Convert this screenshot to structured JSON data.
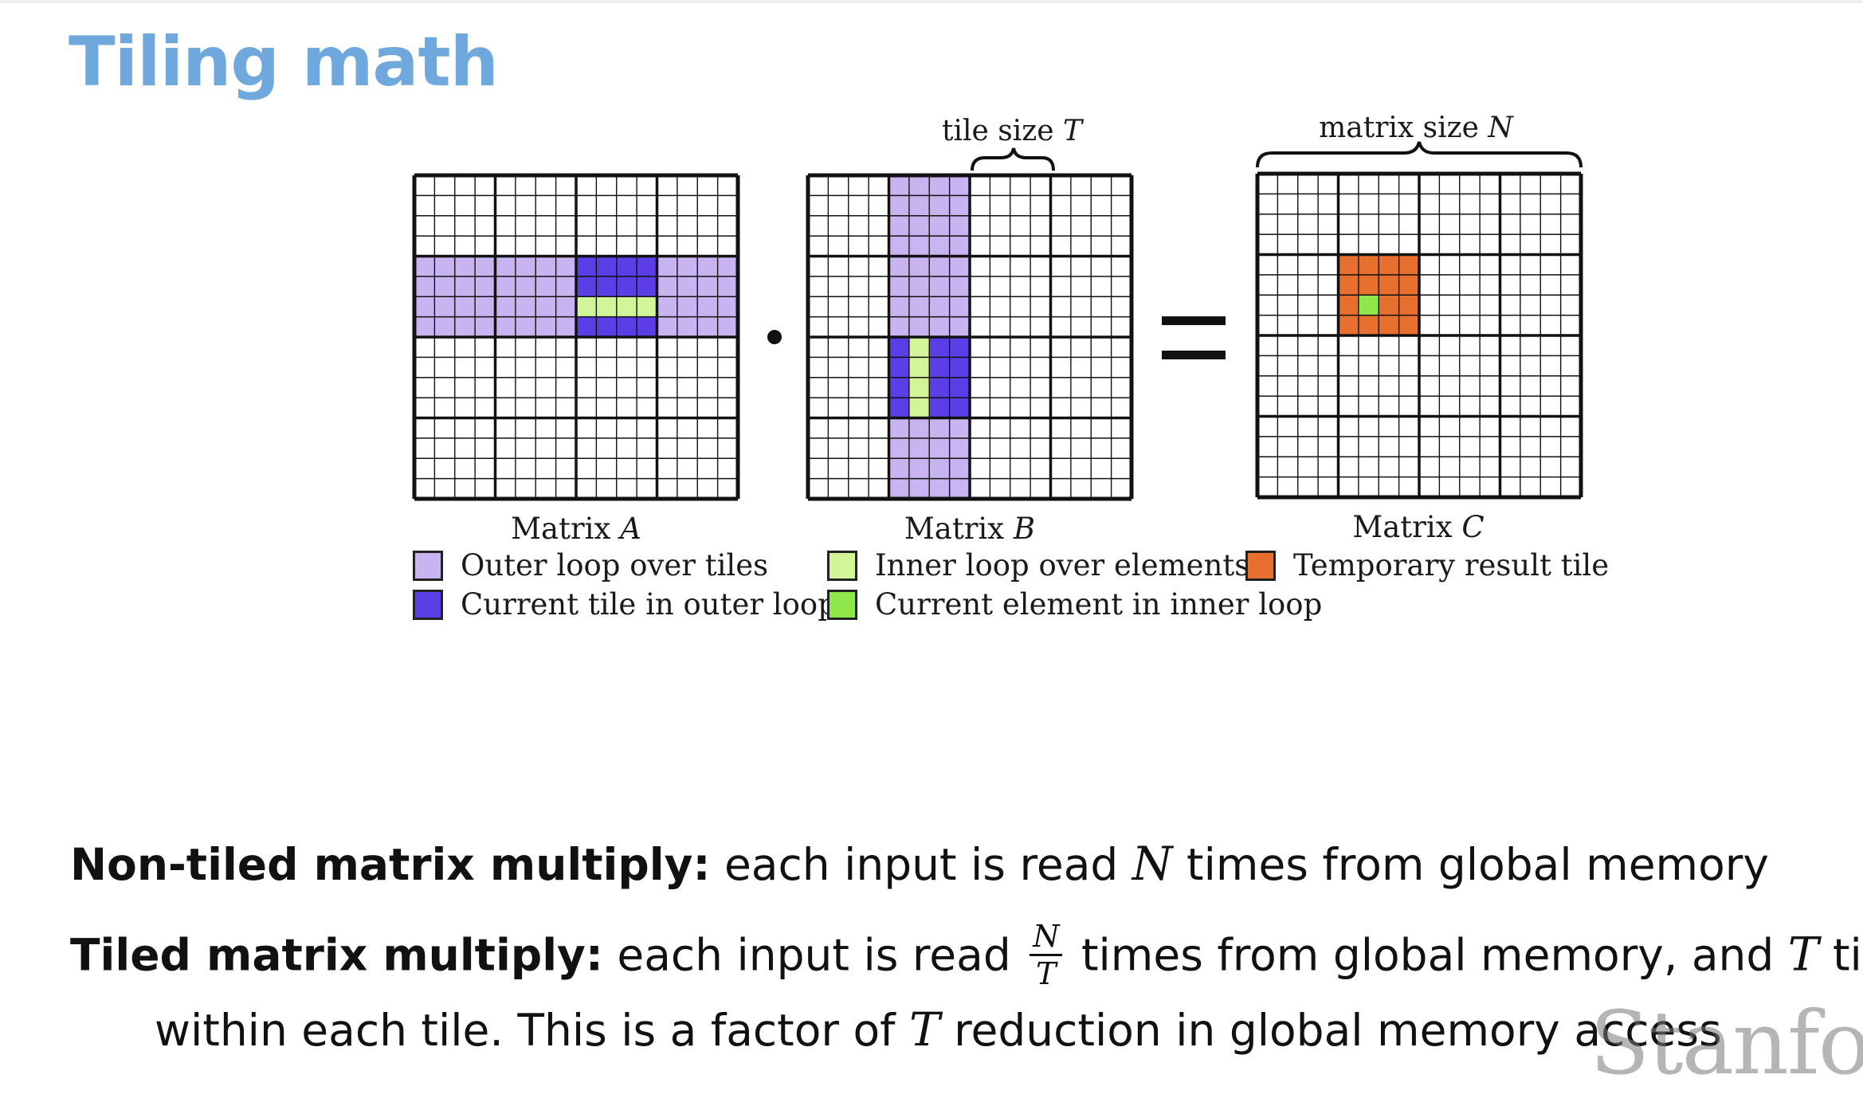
{
  "slide": {
    "title": "Tiling math"
  },
  "diagram": {
    "tile_size_label_text": "tile size ",
    "tile_size_label_var": "T",
    "matrix_size_label_text": "matrix size ",
    "matrix_size_label_var": "N",
    "dot_operator": "·",
    "equals_operator": "=",
    "matrices": [
      {
        "label_text": "Matrix ",
        "label_var": "A"
      },
      {
        "label_text": "Matrix ",
        "label_var": "B"
      },
      {
        "label_text": "Matrix ",
        "label_var": "C"
      }
    ],
    "legend": [
      {
        "label": "Outer loop over tiles",
        "color": "#c8b4f0"
      },
      {
        "label": "Current tile in outer loop",
        "color": "#5b3ee6"
      },
      {
        "label": "Inner loop over elements",
        "color": "#d2f59a"
      },
      {
        "label": "Current element in inner loop",
        "color": "#8ee84a"
      },
      {
        "label": "Temporary result tile",
        "color": "#e8702e"
      }
    ]
  },
  "text": {
    "line1": {
      "bold": "Non-tiled matrix multiply:",
      "pre": " each input is read ",
      "var": "N",
      "post": " times from global memory"
    },
    "line2": {
      "bold": "Tiled matrix multiply:",
      "pre": " each input is read ",
      "frac_num": "N",
      "frac_den": "T",
      "mid": " times from global memory, and ",
      "var": "T",
      "post": " time"
    },
    "line3": {
      "pre": "within each tile. This is a factor of ",
      "var": "T",
      "post": " reduction in global memory access"
    }
  },
  "watermark": "Stanford",
  "colors": {
    "title": "#6fa8dc",
    "outer_loop": "#c8b4f0",
    "current_tile": "#5b3ee6",
    "inner_loop": "#d2f59a",
    "current_element": "#8ee84a",
    "temp_result": "#e8702e"
  }
}
